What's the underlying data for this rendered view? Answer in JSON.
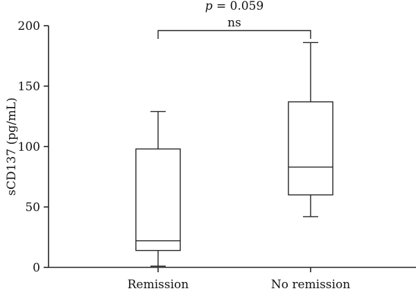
{
  "chart_data": {
    "type": "box",
    "ylabel": "sCD137 (pg/mL)",
    "ylim": [
      0,
      200
    ],
    "yticks": [
      0,
      50,
      100,
      150,
      200
    ],
    "categories": [
      "Remission",
      "No remission"
    ],
    "boxes": [
      {
        "label": "Remission",
        "min": 1,
        "q1": 14,
        "median": 22,
        "q3": 98,
        "max": 129
      },
      {
        "label": "No remission",
        "min": 42,
        "q1": 60,
        "median": 83,
        "q3": 137,
        "max": 186
      }
    ],
    "annotation": {
      "p_symbol": "p",
      "p_text": " = 0.059",
      "sig": "ns"
    },
    "colors": {
      "line": "#222222",
      "box_fill": "#ffffff"
    }
  }
}
